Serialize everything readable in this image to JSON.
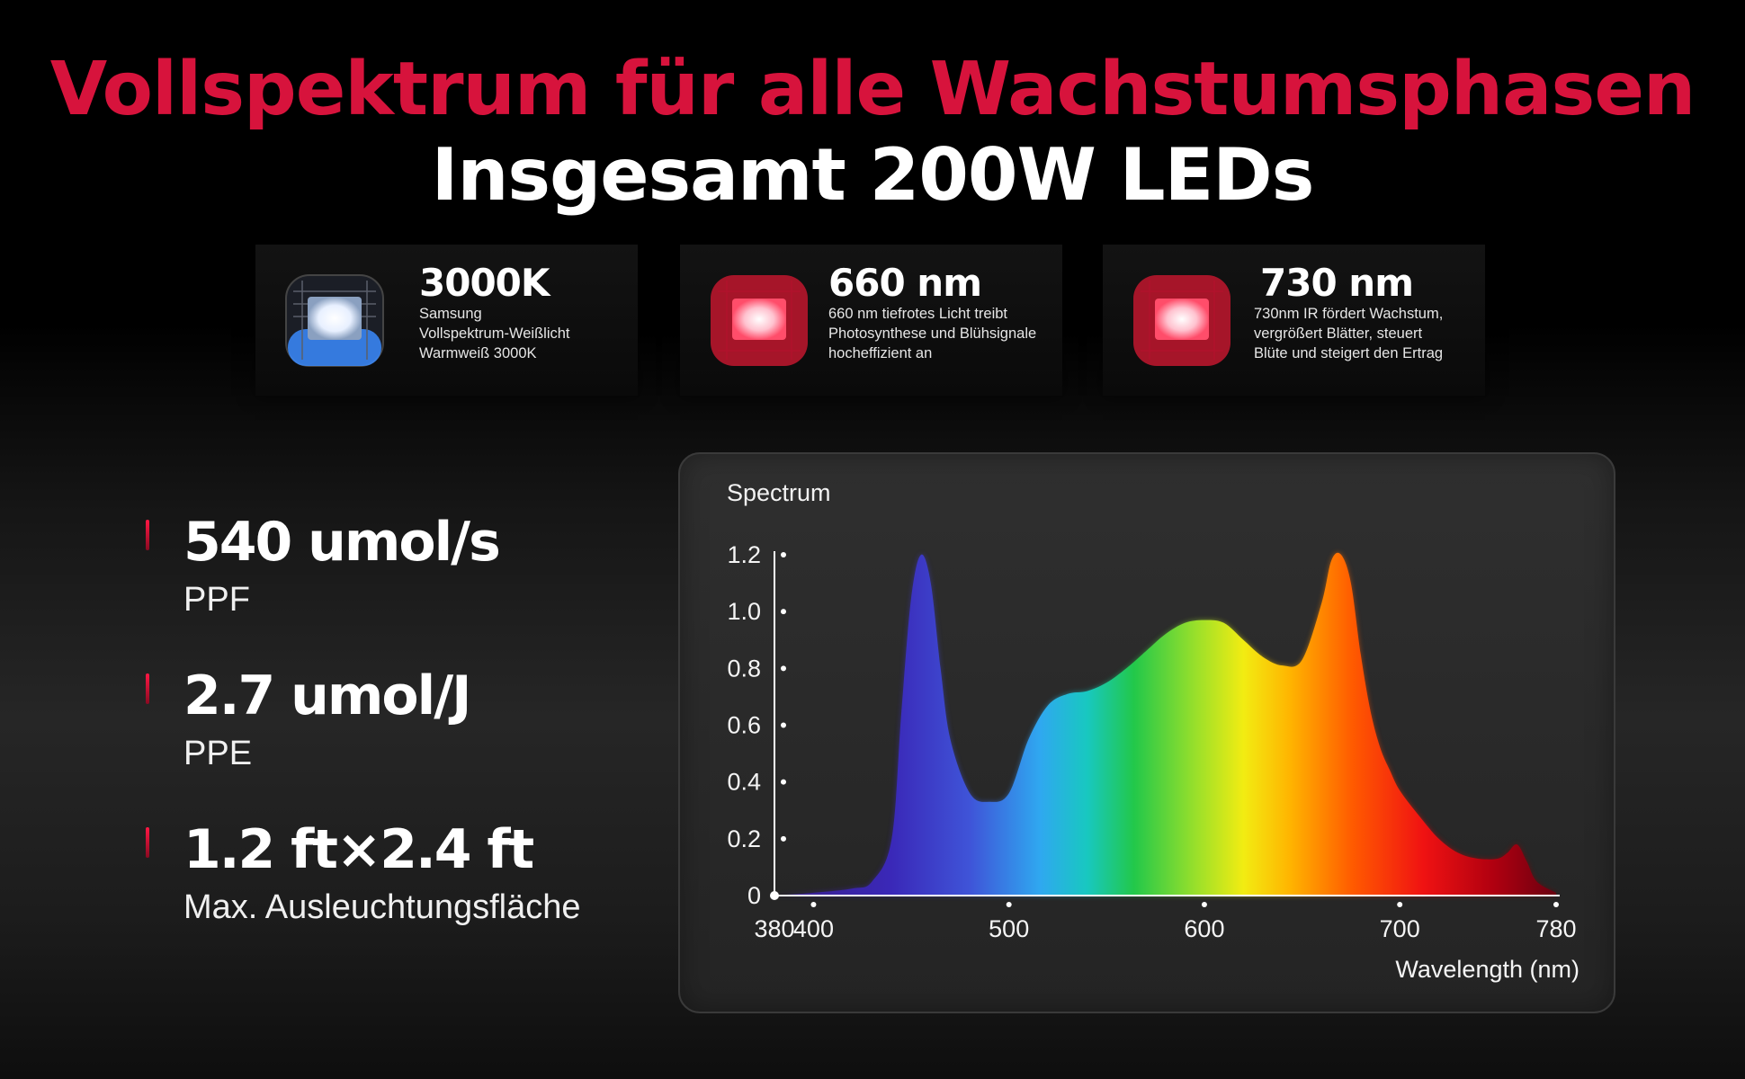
{
  "header": {
    "title": "Vollspektrum für alle Wachstumsphasen",
    "subtitle": "Insgesamt 200W LEDs"
  },
  "cards": [
    {
      "value": "3000K",
      "desc": [
        "Samsung",
        "Vollspektrum-Weißlicht",
        "Warmweiß 3000K"
      ],
      "chip_color": "#e8f0ff",
      "glow_color": "#3a8bff"
    },
    {
      "value": "660 nm",
      "desc": [
        "660 nm tiefrotes Licht treibt",
        "Photosynthese und Blühsignale",
        "hocheffizient an"
      ],
      "chip_color": "#ffc2cf",
      "glow_color": "#ff1f3d"
    },
    {
      "value": "730 nm",
      "desc": [
        "730nm IR fördert Wachstum,",
        "vergrößert Blätter, steuert",
        "Blüte und steigert den Ertrag"
      ],
      "chip_color": "#ffc2cf",
      "glow_color": "#ff1f3d"
    }
  ],
  "metrics": [
    {
      "value": "540 umol/s",
      "label": "PPF"
    },
    {
      "value": "2.7 umol/J",
      "label": "PPE"
    },
    {
      "value": "1.2 ft×2.4 ft",
      "label": "Max. Ausleuchtungsfläche"
    }
  ],
  "accent_color": "#d7133c",
  "chart_data": {
    "type": "area",
    "title": "Spectrum",
    "xlabel": "Wavelength (nm)",
    "ylabel": "",
    "xlim": [
      380,
      780
    ],
    "ylim": [
      0,
      1.2
    ],
    "x_ticks": [
      380,
      400,
      500,
      600,
      700,
      780
    ],
    "y_ticks": [
      0,
      0.2,
      0.4,
      0.6,
      0.8,
      1.0,
      1.2
    ],
    "y_tick_labels": [
      "0",
      "0.2",
      "0.4",
      "0.6",
      "0.8",
      "1.0",
      "1.2"
    ],
    "grid": false,
    "series": [
      {
        "x": [
          380,
          400,
          420,
          430,
          440,
          445,
          450,
          455,
          460,
          465,
          470,
          480,
          490,
          500,
          510,
          520,
          530,
          540,
          550,
          560,
          570,
          580,
          590,
          600,
          610,
          620,
          630,
          640,
          650,
          660,
          665,
          670,
          675,
          680,
          685,
          690,
          695,
          700,
          710,
          720,
          730,
          740,
          750,
          755,
          760,
          765,
          770,
          780
        ],
        "y": [
          0,
          0.01,
          0.025,
          0.05,
          0.2,
          0.65,
          1.05,
          1.2,
          1.1,
          0.8,
          0.55,
          0.36,
          0.33,
          0.36,
          0.55,
          0.67,
          0.71,
          0.72,
          0.75,
          0.8,
          0.86,
          0.92,
          0.96,
          0.97,
          0.96,
          0.9,
          0.84,
          0.81,
          0.83,
          1.03,
          1.18,
          1.2,
          1.1,
          0.85,
          0.65,
          0.52,
          0.44,
          0.37,
          0.28,
          0.2,
          0.15,
          0.13,
          0.13,
          0.15,
          0.18,
          0.12,
          0.05,
          0.01
        ]
      }
    ]
  }
}
